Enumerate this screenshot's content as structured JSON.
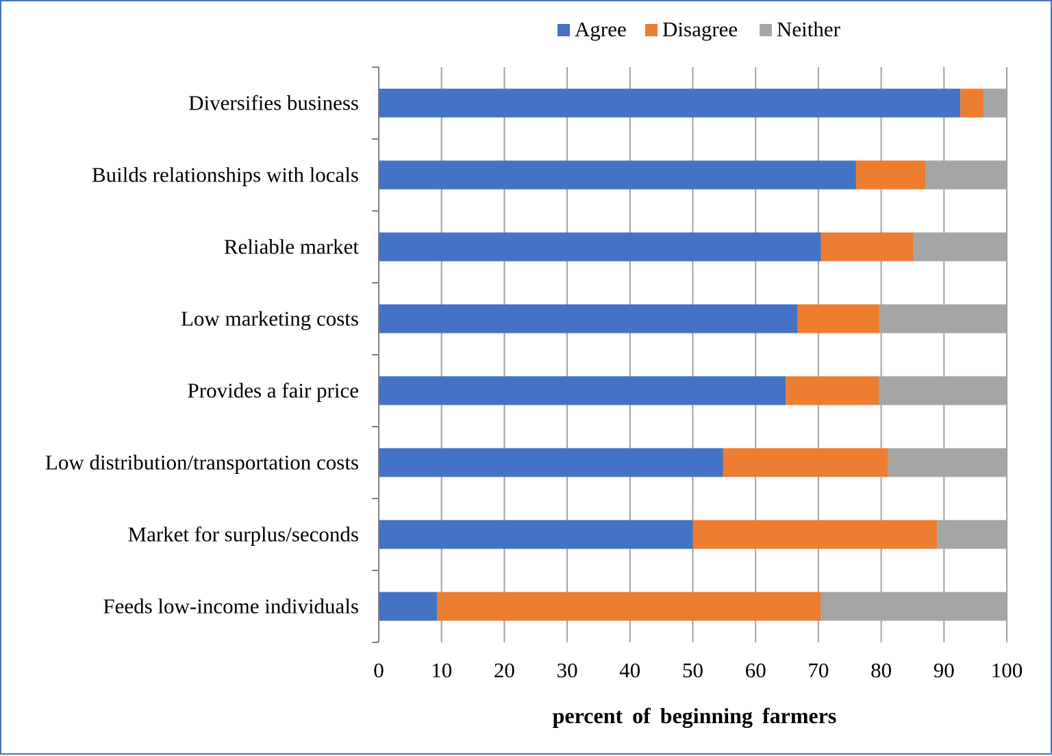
{
  "chart_data": {
    "type": "bar",
    "orientation": "horizontal",
    "stacked": true,
    "title": "",
    "categories": [
      "Diversifies business",
      "Builds relationships with locals",
      "Reliable market",
      "Low marketing costs",
      "Provides a fair price",
      "Low distribution/transportation costs",
      "Market for surplus/seconds",
      "Feeds low-income individuals"
    ],
    "series": [
      {
        "name": "Agree",
        "color": "#4472c4",
        "values": [
          92.6,
          76.0,
          70.4,
          66.7,
          64.8,
          54.8,
          50.0,
          9.3
        ]
      },
      {
        "name": "Disagree",
        "color": "#ed7d31",
        "values": [
          3.7,
          11.1,
          14.8,
          13.0,
          14.8,
          26.3,
          38.9,
          61.1
        ]
      },
      {
        "name": "Neither",
        "color": "#a5a5a5",
        "values": [
          3.7,
          12.9,
          14.8,
          20.3,
          20.4,
          18.9,
          11.1,
          29.6
        ]
      }
    ],
    "xlabel": "percent of beginning farmers",
    "ylabel": "",
    "xlim": [
      0,
      100
    ],
    "xticks": [
      "0",
      "10",
      "20",
      "30",
      "40",
      "50",
      "60",
      "70",
      "80",
      "90",
      "100"
    ],
    "grid": true,
    "legend_position": "top-center"
  }
}
